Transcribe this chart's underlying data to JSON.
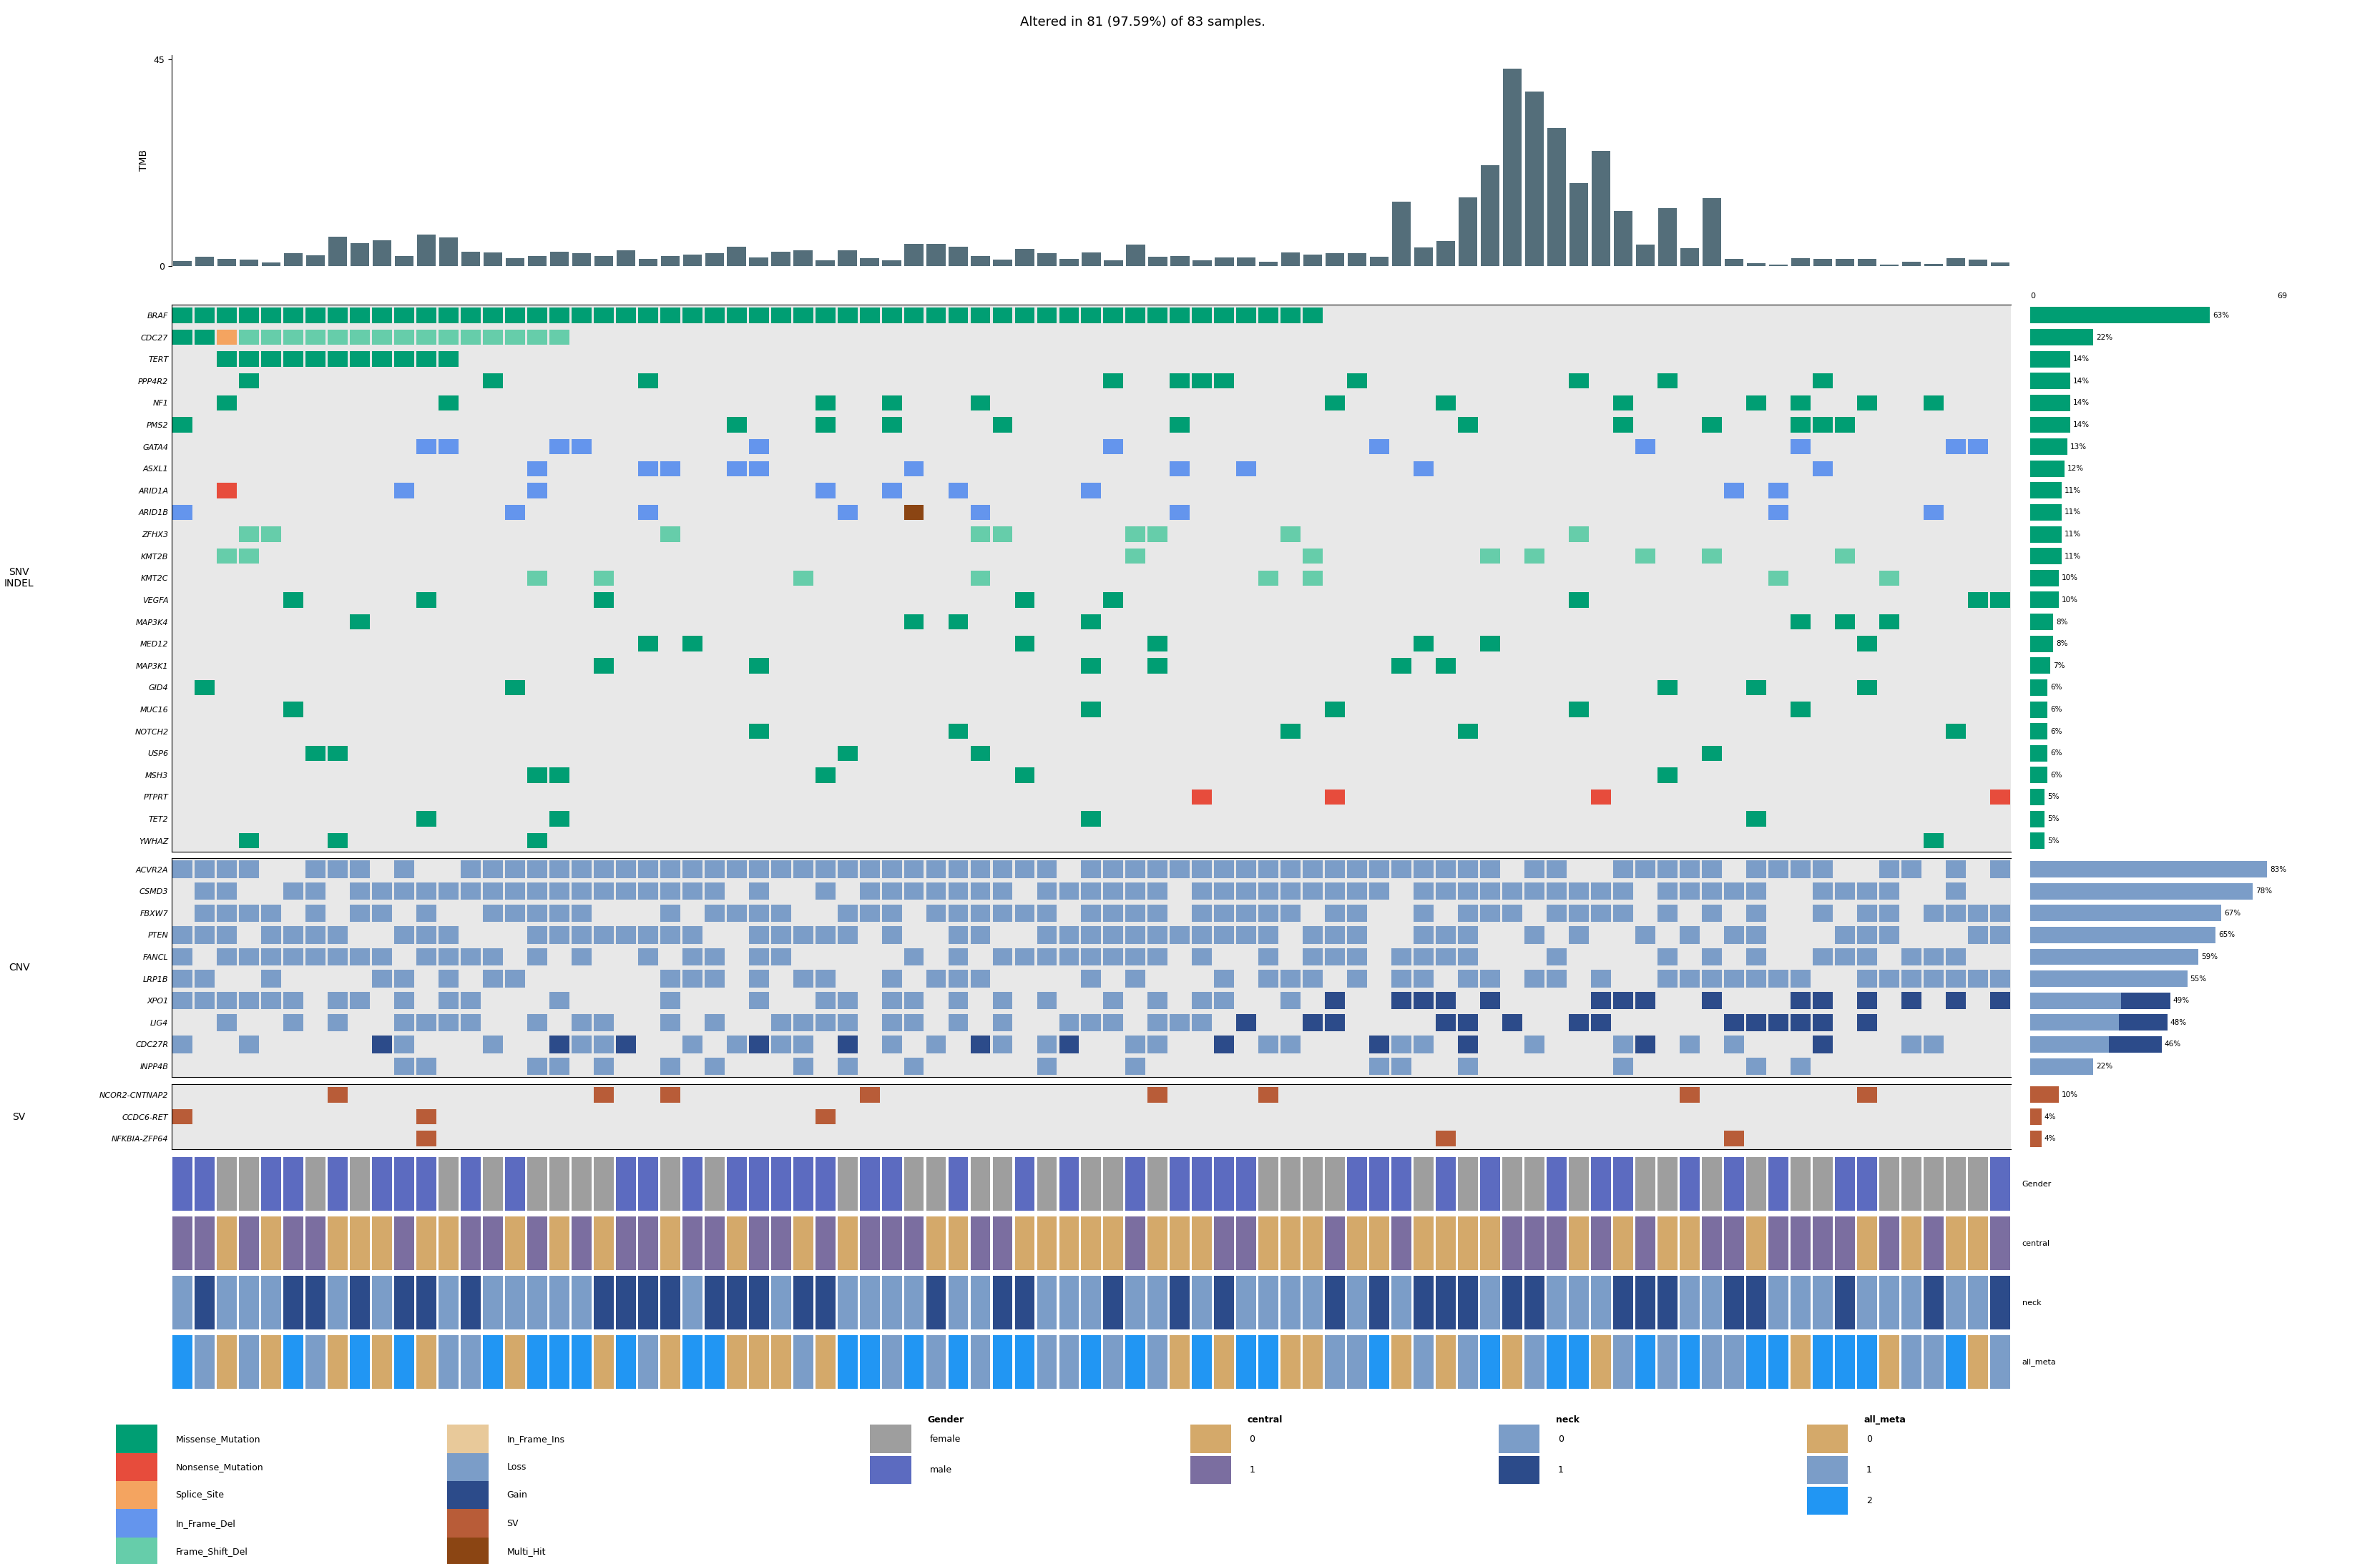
{
  "title": "Altered in 81 (97.59%) of 83 samples.",
  "n_samples": 83,
  "snv_genes": [
    "BRAF",
    "CDC27",
    "TERT",
    "PPP4R2",
    "NF1",
    "PMS2",
    "GATA4",
    "ASXL1",
    "ARID1A",
    "ARID1B",
    "ZFHX3",
    "KMT2B",
    "KMT2C",
    "VEGFA",
    "MAP3K4",
    "MED12",
    "MAP3K1",
    "GID4",
    "MUC16",
    "NOTCH2",
    "USP6",
    "MSH3",
    "PTPRT",
    "TET2",
    "YWHAZ"
  ],
  "snv_pct": [
    63,
    22,
    14,
    14,
    14,
    14,
    13,
    12,
    11,
    11,
    11,
    11,
    10,
    10,
    8,
    8,
    7,
    6,
    6,
    6,
    6,
    6,
    5,
    5,
    5
  ],
  "cnv_genes": [
    "ACVR2A",
    "CSMD3",
    "FBXW7",
    "PTEN",
    "FANCL",
    "LRP1B",
    "XPO1",
    "LIG4",
    "CDC27R",
    "INPP4B"
  ],
  "cnv_pct": [
    83,
    78,
    67,
    65,
    59,
    55,
    49,
    48,
    46,
    22
  ],
  "sv_genes": [
    "NCOR2-CNTNAP2",
    "CCDC6-RET",
    "NFKBIA-ZFP64"
  ],
  "sv_pct": [
    10,
    4,
    4
  ],
  "mut_colors": {
    "Missense_Mutation": "#009E73",
    "Nonsense_Mutation": "#E74C3C",
    "Splice_Site": "#F4A460",
    "In_Frame_Del": "#6495ED",
    "Frame_Shift_Del": "#66CDAA",
    "In_Frame_Ins": "#E8C99A",
    "Loss": "#7B9DC8",
    "Gain": "#2C4B8A",
    "SV": "#B85C38",
    "Multi_Hit": "#8B4513"
  },
  "tmb_bar_color": "#546E7A",
  "tmb_max": 45,
  "legend_items_col1": [
    [
      "Missense_Mutation",
      "#009E73"
    ],
    [
      "Nonsense_Mutation",
      "#E74C3C"
    ],
    [
      "Splice_Site",
      "#F4A460"
    ],
    [
      "In_Frame_Del",
      "#6495ED"
    ],
    [
      "Frame_Shift_Del",
      "#66CDAA"
    ]
  ],
  "legend_items_col2": [
    [
      "In_Frame_Ins",
      "#E8C99A"
    ],
    [
      "Loss",
      "#7B9DC8"
    ],
    [
      "Gain",
      "#2C4B8A"
    ],
    [
      "SV",
      "#B85C38"
    ],
    [
      "Multi_Hit",
      "#8B4513"
    ]
  ],
  "gender_colors": {
    "female": "#9E9E9E",
    "male": "#5C6BC0"
  },
  "ann_colors": {
    "gender": {
      "0": "#9E9E9E",
      "1": "#5C6BC0"
    },
    "central": {
      "0": "#D4A96A",
      "1": "#7B6EA0"
    },
    "neck": {
      "0": "#7B9DC8",
      "1": "#2C4B8A"
    },
    "all_meta": {
      "0": "#D4A96A",
      "1": "#7B9DC8",
      "2": "#2196F3"
    }
  }
}
